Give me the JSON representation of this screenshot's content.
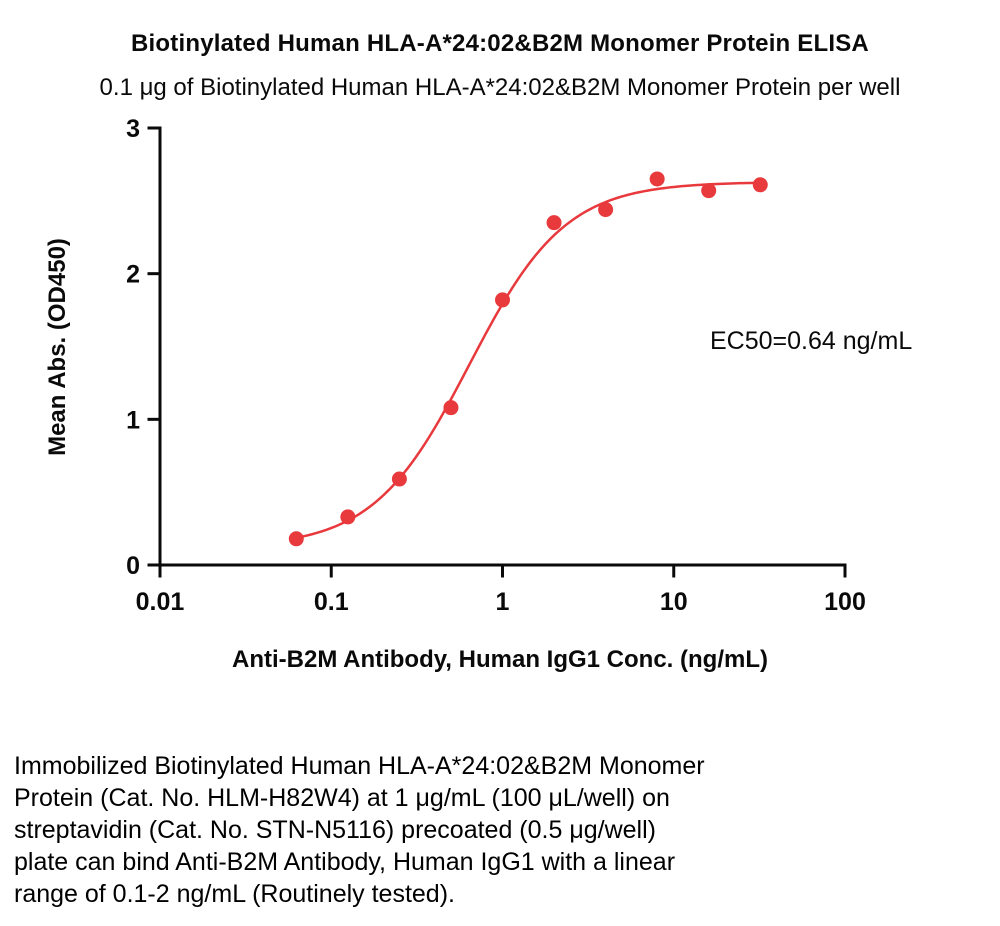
{
  "figure": {
    "title": "Biotinylated Human HLA-A*24:02&B2M Monomer Protein ELISA",
    "subtitle": "0.1 μg of Biotinylated Human HLA-A*24:02&B2M Monomer Protein per well"
  },
  "chart_data": {
    "type": "scatter",
    "title": "Biotinylated Human HLA-A*24:02&B2M Monomer Protein ELISA",
    "xlabel": "Anti-B2M Antibody, Human IgG1 Conc. (ng/mL)",
    "ylabel": "Mean Abs. (OD450)",
    "x_scale": "log10",
    "xlim": [
      0.01,
      100
    ],
    "ylim": [
      0,
      3
    ],
    "grid": false,
    "legend": "none",
    "axis_color": "#0a0a0a",
    "x_ticks": [
      {
        "value": 0.01,
        "label": "0.01"
      },
      {
        "value": 0.1,
        "label": "0.1"
      },
      {
        "value": 1,
        "label": "1"
      },
      {
        "value": 10,
        "label": "10"
      },
      {
        "value": 100,
        "label": "100"
      }
    ],
    "y_ticks": [
      {
        "value": 0,
        "label": "0"
      },
      {
        "value": 1,
        "label": "1"
      },
      {
        "value": 2,
        "label": "2"
      },
      {
        "value": 3,
        "label": "3"
      }
    ],
    "series": [
      {
        "name": "Anti-B2M Antibody, Human IgG1",
        "color": "#e8393d",
        "points": [
          {
            "x": 0.0625,
            "y": 0.18
          },
          {
            "x": 0.125,
            "y": 0.33
          },
          {
            "x": 0.25,
            "y": 0.59
          },
          {
            "x": 0.5,
            "y": 1.08
          },
          {
            "x": 1,
            "y": 1.82
          },
          {
            "x": 2,
            "y": 2.35
          },
          {
            "x": 4,
            "y": 2.44
          },
          {
            "x": 8,
            "y": 2.65
          },
          {
            "x": 16,
            "y": 2.57
          },
          {
            "x": 32,
            "y": 2.61
          }
        ]
      }
    ],
    "fit": {
      "model": "4PL",
      "bottom": 0.12,
      "top": 2.63,
      "ec50": 0.64,
      "hill": 1.55,
      "x_start": 0.0625,
      "x_end": 32
    },
    "annotation": {
      "text": "EC50=0.64 ng/mL"
    }
  },
  "caption": {
    "lines": [
      "Immobilized Biotinylated Human HLA-A*24:02&B2M Monomer",
      "Protein (Cat. No. HLM-H82W4) at 1 μg/mL (100 μL/well) on",
      "streptavidin (Cat. No. STN-N5116) precoated (0.5 μg/well)",
      "plate can bind Anti-B2M Antibody, Human IgG1 with a linear",
      "range of 0.1-2 ng/mL (Routinely tested)."
    ]
  }
}
